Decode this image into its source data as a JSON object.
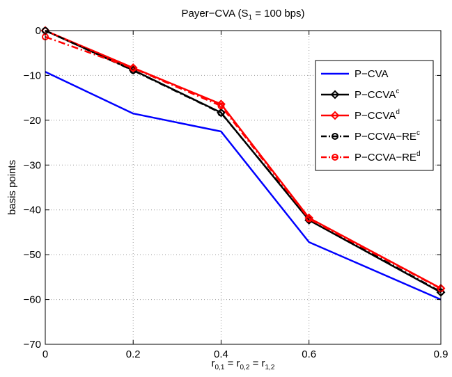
{
  "chart_data": {
    "type": "line",
    "title": "Payer−CVA (S",
    "title_sub": "1",
    "title_tail": " = 100 bps)",
    "xlabel_parts": [
      {
        "t": "r",
        "s": "0,1"
      },
      {
        "t": " = r",
        "s": "0,2"
      },
      {
        "t": " = r",
        "s": "1,2"
      }
    ],
    "ylabel": "basis points",
    "x_ticks": [
      0,
      0.2,
      0.4,
      0.6,
      0.9
    ],
    "x_tick_labels": [
      "0",
      "0.2",
      "0.4",
      "0.6",
      "0.9"
    ],
    "y_ticks": [
      0,
      -10,
      -20,
      -30,
      -40,
      -50,
      -60,
      -70
    ],
    "y_tick_labels": [
      "0",
      "−10",
      "−20",
      "−30",
      "−40",
      "−50",
      "−60",
      "−70"
    ],
    "xlim": [
      0,
      0.9
    ],
    "ylim": [
      -70,
      0
    ],
    "grid": true,
    "legend_position": "top-right",
    "x": [
      0,
      0.2,
      0.4,
      0.6,
      0.9
    ],
    "series": [
      {
        "label": "P−CVA",
        "sup": "",
        "color": "#0000ff",
        "dash": "solid",
        "marker": "none",
        "values": [
          -9.2,
          -18.5,
          -22.5,
          -47.2,
          -60.0
        ]
      },
      {
        "label": "P−CCVA",
        "sup": "c",
        "color": "#000000",
        "dash": "solid",
        "marker": "diamond",
        "values": [
          0,
          -8.8,
          -18.3,
          -42.3,
          -58.4
        ]
      },
      {
        "label": "P−CCVA",
        "sup": "d",
        "color": "#ff0000",
        "dash": "solid",
        "marker": "diamond",
        "values": [
          0,
          -8.3,
          -16.4,
          -41.8,
          -57.5
        ]
      },
      {
        "label": "P−CCVA−RE",
        "sup": "c",
        "color": "#000000",
        "dash": "dashdot",
        "marker": "circle",
        "values": [
          0,
          -8.9,
          -18.4,
          -42.1,
          -58.3
        ]
      },
      {
        "label": "P−CCVA−RE",
        "sup": "d",
        "color": "#ff0000",
        "dash": "dashdot",
        "marker": "circle",
        "values": [
          -1.4,
          -8.4,
          -16.8,
          -42.0,
          -57.6
        ]
      }
    ]
  }
}
